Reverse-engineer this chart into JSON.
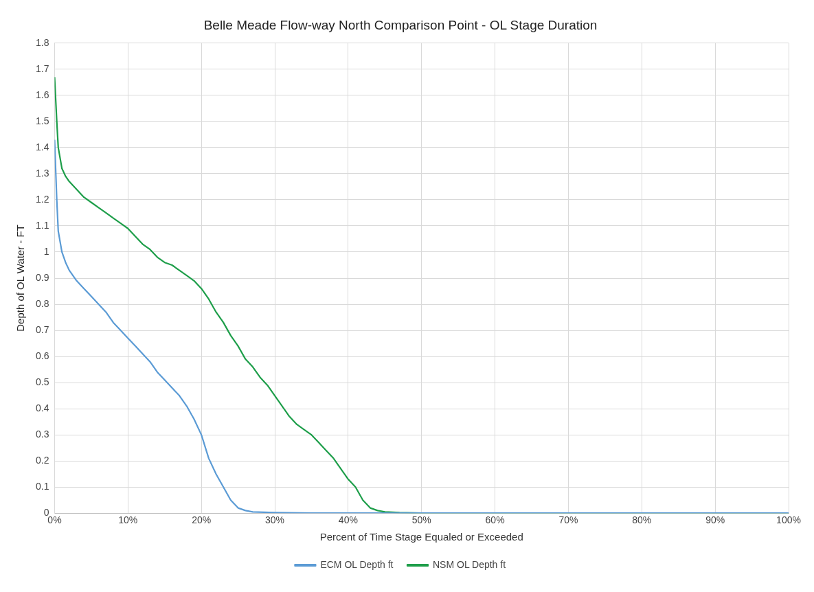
{
  "chart_data": {
    "type": "line",
    "title": "Belle Meade Flow-way North Comparison Point - OL Stage Duration",
    "xlabel": "Percent of Time Stage Equaled or Exceeded",
    "ylabel": "Depth of OL Water - FT",
    "xlim": [
      0,
      100
    ],
    "xticks": [
      {
        "value": 0,
        "label": "0%"
      },
      {
        "value": 10,
        "label": "10%"
      },
      {
        "value": 20,
        "label": "20%"
      },
      {
        "value": 30,
        "label": "30%"
      },
      {
        "value": 40,
        "label": "40%"
      },
      {
        "value": 50,
        "label": "50%"
      },
      {
        "value": 60,
        "label": "60%"
      },
      {
        "value": 70,
        "label": "70%"
      },
      {
        "value": 80,
        "label": "80%"
      },
      {
        "value": 90,
        "label": "90%"
      },
      {
        "value": 100,
        "label": "100%"
      }
    ],
    "ylim": [
      0,
      1.8
    ],
    "yticks": [
      0,
      0.1,
      0.2,
      0.3,
      0.4,
      0.5,
      0.6,
      0.7,
      0.8,
      0.9,
      1,
      1.1,
      1.2,
      1.3,
      1.4,
      1.5,
      1.6,
      1.7,
      1.8
    ],
    "grid": true,
    "legend": "bottom",
    "marker": "none",
    "line_style": "solid",
    "series": [
      {
        "name": "ECM OL Depth ft",
        "color": "#5b9bd5",
        "x": [
          0,
          0.3,
          0.5,
          1,
          1.5,
          2,
          3,
          4,
          5,
          6,
          7,
          8,
          9,
          10,
          11,
          12,
          13,
          14,
          15,
          16,
          17,
          18,
          19,
          20,
          21,
          22,
          23,
          24,
          25,
          26,
          27,
          30,
          35,
          100
        ],
        "values": [
          1.43,
          1.2,
          1.08,
          1.0,
          0.96,
          0.93,
          0.89,
          0.86,
          0.83,
          0.8,
          0.77,
          0.73,
          0.7,
          0.67,
          0.64,
          0.61,
          0.58,
          0.54,
          0.51,
          0.48,
          0.45,
          0.41,
          0.36,
          0.3,
          0.21,
          0.15,
          0.1,
          0.05,
          0.02,
          0.01,
          0.005,
          0.002,
          0,
          0
        ]
      },
      {
        "name": "NSM OL Depth ft",
        "color": "#1e9e4a",
        "x": [
          0,
          0.3,
          0.5,
          1,
          1.5,
          2,
          3,
          4,
          5,
          6,
          7,
          8,
          9,
          10,
          11,
          12,
          13,
          14,
          15,
          16,
          17,
          18,
          19,
          20,
          21,
          22,
          23,
          24,
          25,
          26,
          27,
          28,
          29,
          30,
          31,
          32,
          33,
          34,
          35,
          36,
          37,
          38,
          39,
          40,
          41,
          42,
          43,
          44,
          45,
          47,
          50,
          100
        ],
        "values": [
          1.67,
          1.5,
          1.4,
          1.32,
          1.29,
          1.27,
          1.24,
          1.21,
          1.19,
          1.17,
          1.15,
          1.13,
          1.11,
          1.09,
          1.06,
          1.03,
          1.01,
          0.98,
          0.96,
          0.95,
          0.93,
          0.91,
          0.89,
          0.86,
          0.82,
          0.77,
          0.73,
          0.68,
          0.64,
          0.59,
          0.56,
          0.52,
          0.49,
          0.45,
          0.41,
          0.37,
          0.34,
          0.32,
          0.3,
          0.27,
          0.24,
          0.21,
          0.17,
          0.13,
          0.1,
          0.05,
          0.02,
          0.01,
          0.005,
          0.002,
          0,
          0
        ]
      }
    ]
  }
}
